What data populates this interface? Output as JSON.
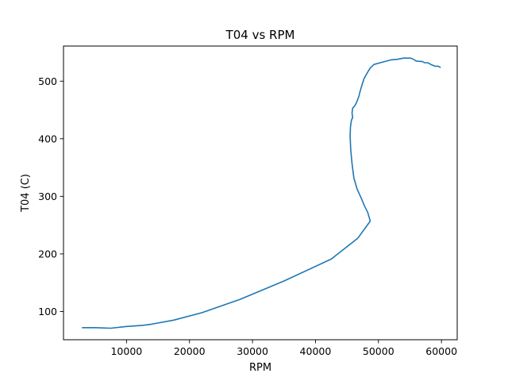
{
  "chart_data": {
    "type": "line",
    "title": "T04 vs RPM",
    "xlabel": "RPM",
    "ylabel": "T04 (C)",
    "xlim": [
      0,
      62500
    ],
    "ylim": [
      51,
      561
    ],
    "grid": false,
    "x_ticks": [
      10000,
      20000,
      30000,
      40000,
      50000,
      60000
    ],
    "y_ticks": [
      100,
      200,
      300,
      400,
      500
    ],
    "series": [
      {
        "color": "#1f77b4",
        "x": [
          3000,
          5000,
          7500,
          10000,
          12500,
          14000,
          17500,
          22000,
          28000,
          35000,
          42500,
          46700,
          48700,
          48300,
          47800,
          47300,
          46600,
          46100,
          45800,
          45600,
          45500,
          45550,
          45700,
          45900,
          45800,
          45900,
          46300,
          46600,
          46900,
          47100,
          47400,
          47700,
          48200,
          48700,
          49300,
          50300,
          51300,
          52000,
          53000,
          54000,
          55000,
          55400,
          56000,
          57000,
          57300,
          57800,
          58500,
          59000,
          59500,
          59800
        ],
        "y": [
          72,
          72,
          71,
          74,
          76,
          78,
          85,
          98,
          121,
          153,
          191,
          227,
          257,
          272,
          283,
          296,
          313,
          332,
          357,
          380,
          404,
          420,
          432,
          437,
          445,
          453,
          458,
          465,
          474,
          483,
          494,
          504,
          514,
          523,
          529,
          532,
          535,
          537,
          538,
          540,
          540,
          539,
          535,
          534,
          532,
          532,
          528,
          526,
          526,
          524
        ]
      }
    ]
  }
}
